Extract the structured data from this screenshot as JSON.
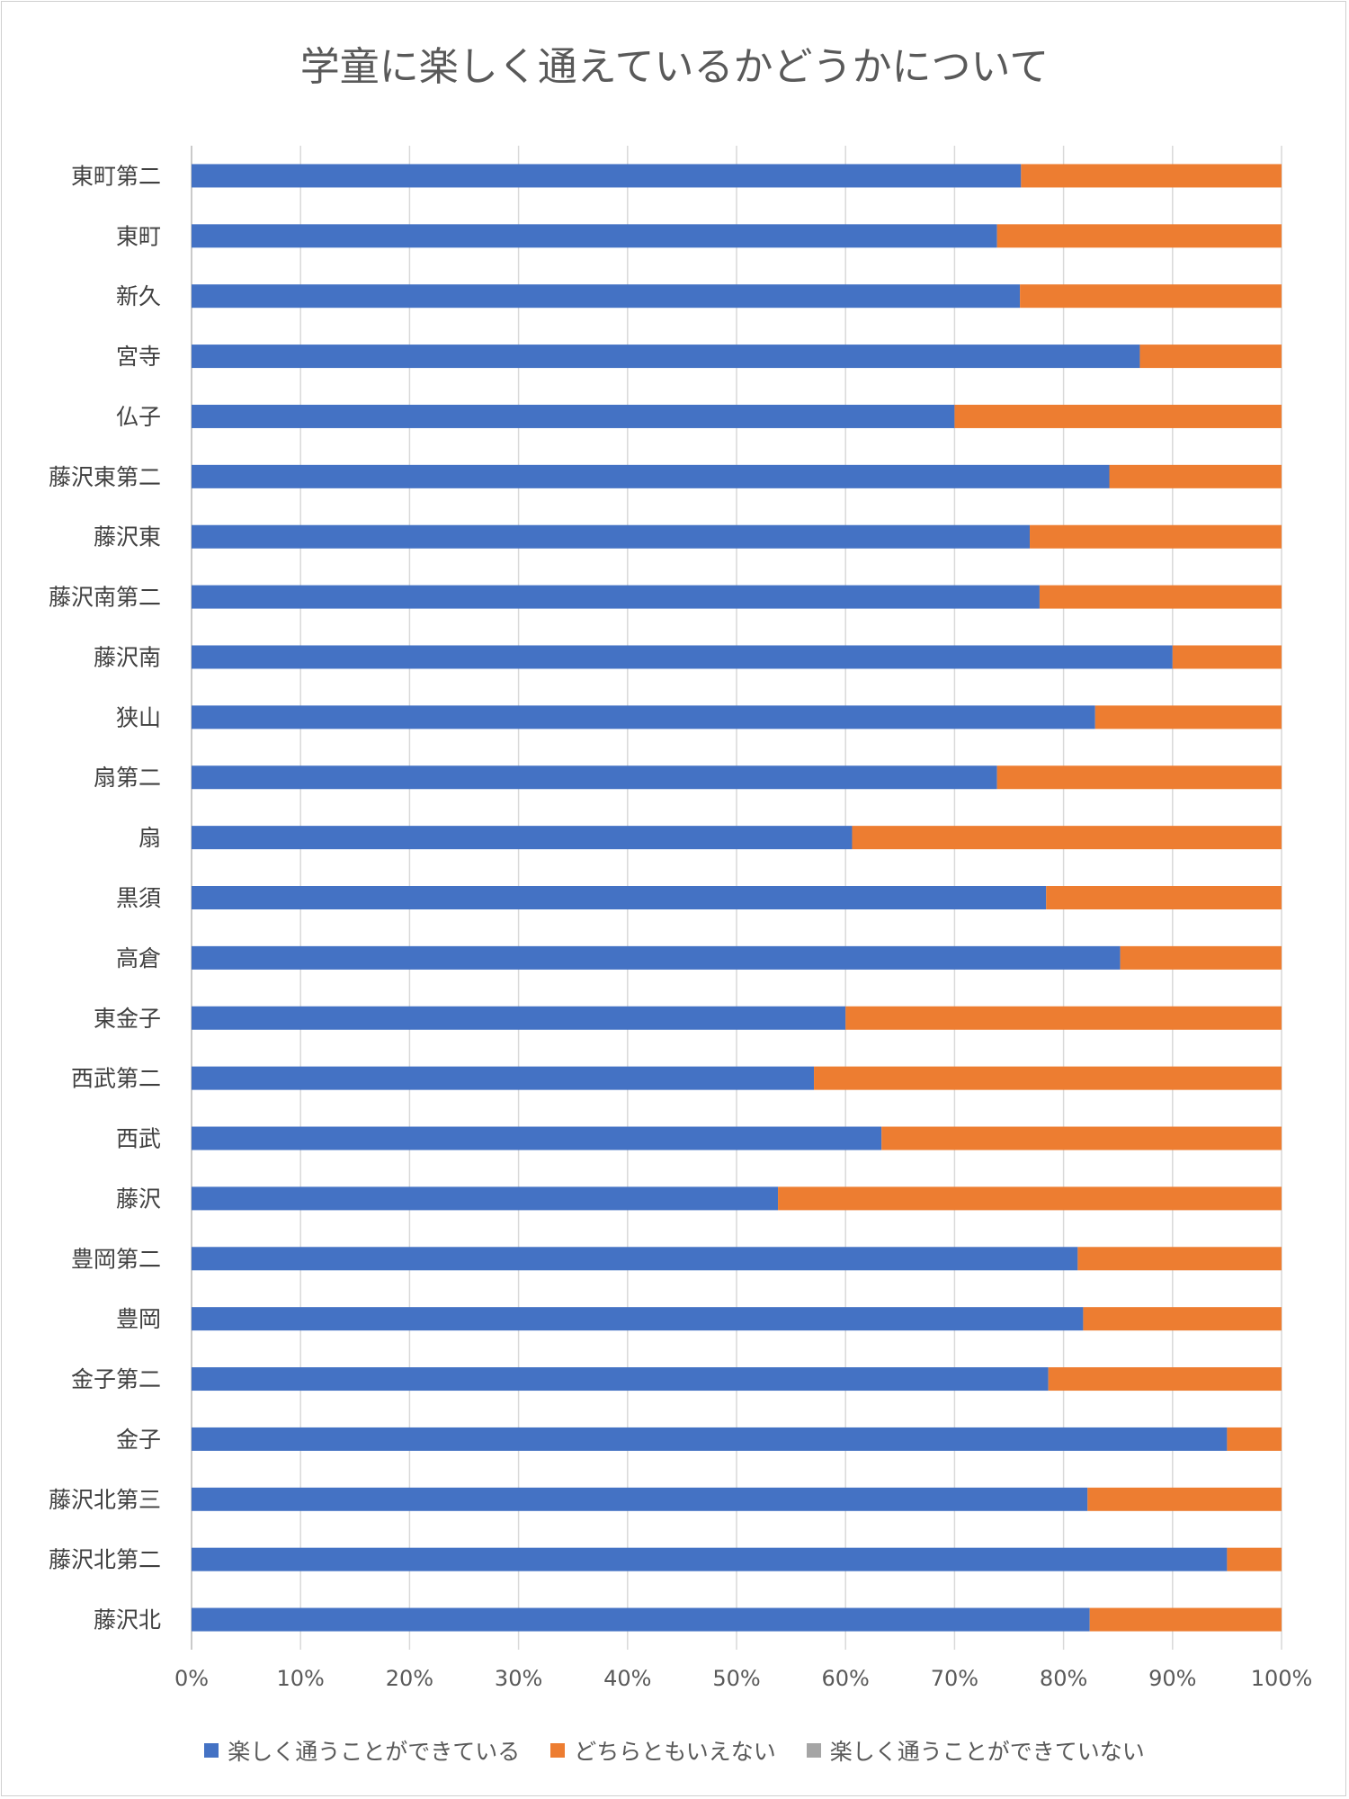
{
  "chart_data": {
    "type": "bar",
    "orientation": "horizontal",
    "stacked": "percent",
    "title": "学童に楽しく通えているかどうかについて",
    "categories": [
      "東町第二",
      "東町",
      "新久",
      "宮寺",
      "仏子",
      "藤沢東第二",
      "藤沢東",
      "藤沢南第二",
      "藤沢南",
      "狭山",
      "扇第二",
      "扇",
      "黒須",
      "高倉",
      "東金子",
      "西武第二",
      "西武",
      "藤沢",
      "豊岡第二",
      "豊岡",
      "金子第二",
      "金子",
      "藤沢北第三",
      "藤沢北第二",
      "藤沢北"
    ],
    "series": [
      {
        "name": "楽しく通うことができている",
        "color": "#4472c4",
        "values": [
          76.1,
          73.9,
          76.0,
          87.0,
          70.0,
          84.2,
          76.9,
          77.8,
          90.0,
          82.9,
          73.9,
          60.6,
          78.4,
          85.2,
          60.0,
          57.1,
          63.3,
          53.8,
          81.3,
          81.8,
          78.6,
          95.0,
          82.2,
          95.0,
          82.4
        ]
      },
      {
        "name": "どちらともいえない",
        "color": "#ed7d31",
        "values": [
          23.9,
          26.1,
          24.0,
          13.0,
          30.0,
          15.8,
          23.1,
          22.2,
          10.0,
          17.1,
          26.1,
          39.4,
          21.6,
          14.8,
          40.0,
          42.9,
          36.7,
          46.2,
          18.7,
          18.2,
          21.4,
          5.0,
          17.8,
          5.0,
          17.6
        ]
      },
      {
        "name": "楽しく通うことができていない",
        "color": "#a5a5a5",
        "values": [
          0,
          0,
          0,
          0,
          0,
          0,
          0,
          0,
          0,
          0,
          0,
          0,
          0,
          0,
          0,
          0,
          0,
          0,
          0,
          0,
          0,
          0,
          0,
          0,
          0
        ]
      }
    ],
    "xlim": [
      0,
      100
    ],
    "x_ticks": [
      "0%",
      "10%",
      "20%",
      "30%",
      "40%",
      "50%",
      "60%",
      "70%",
      "80%",
      "90%",
      "100%"
    ],
    "grid": true,
    "legend_position": "bottom"
  }
}
